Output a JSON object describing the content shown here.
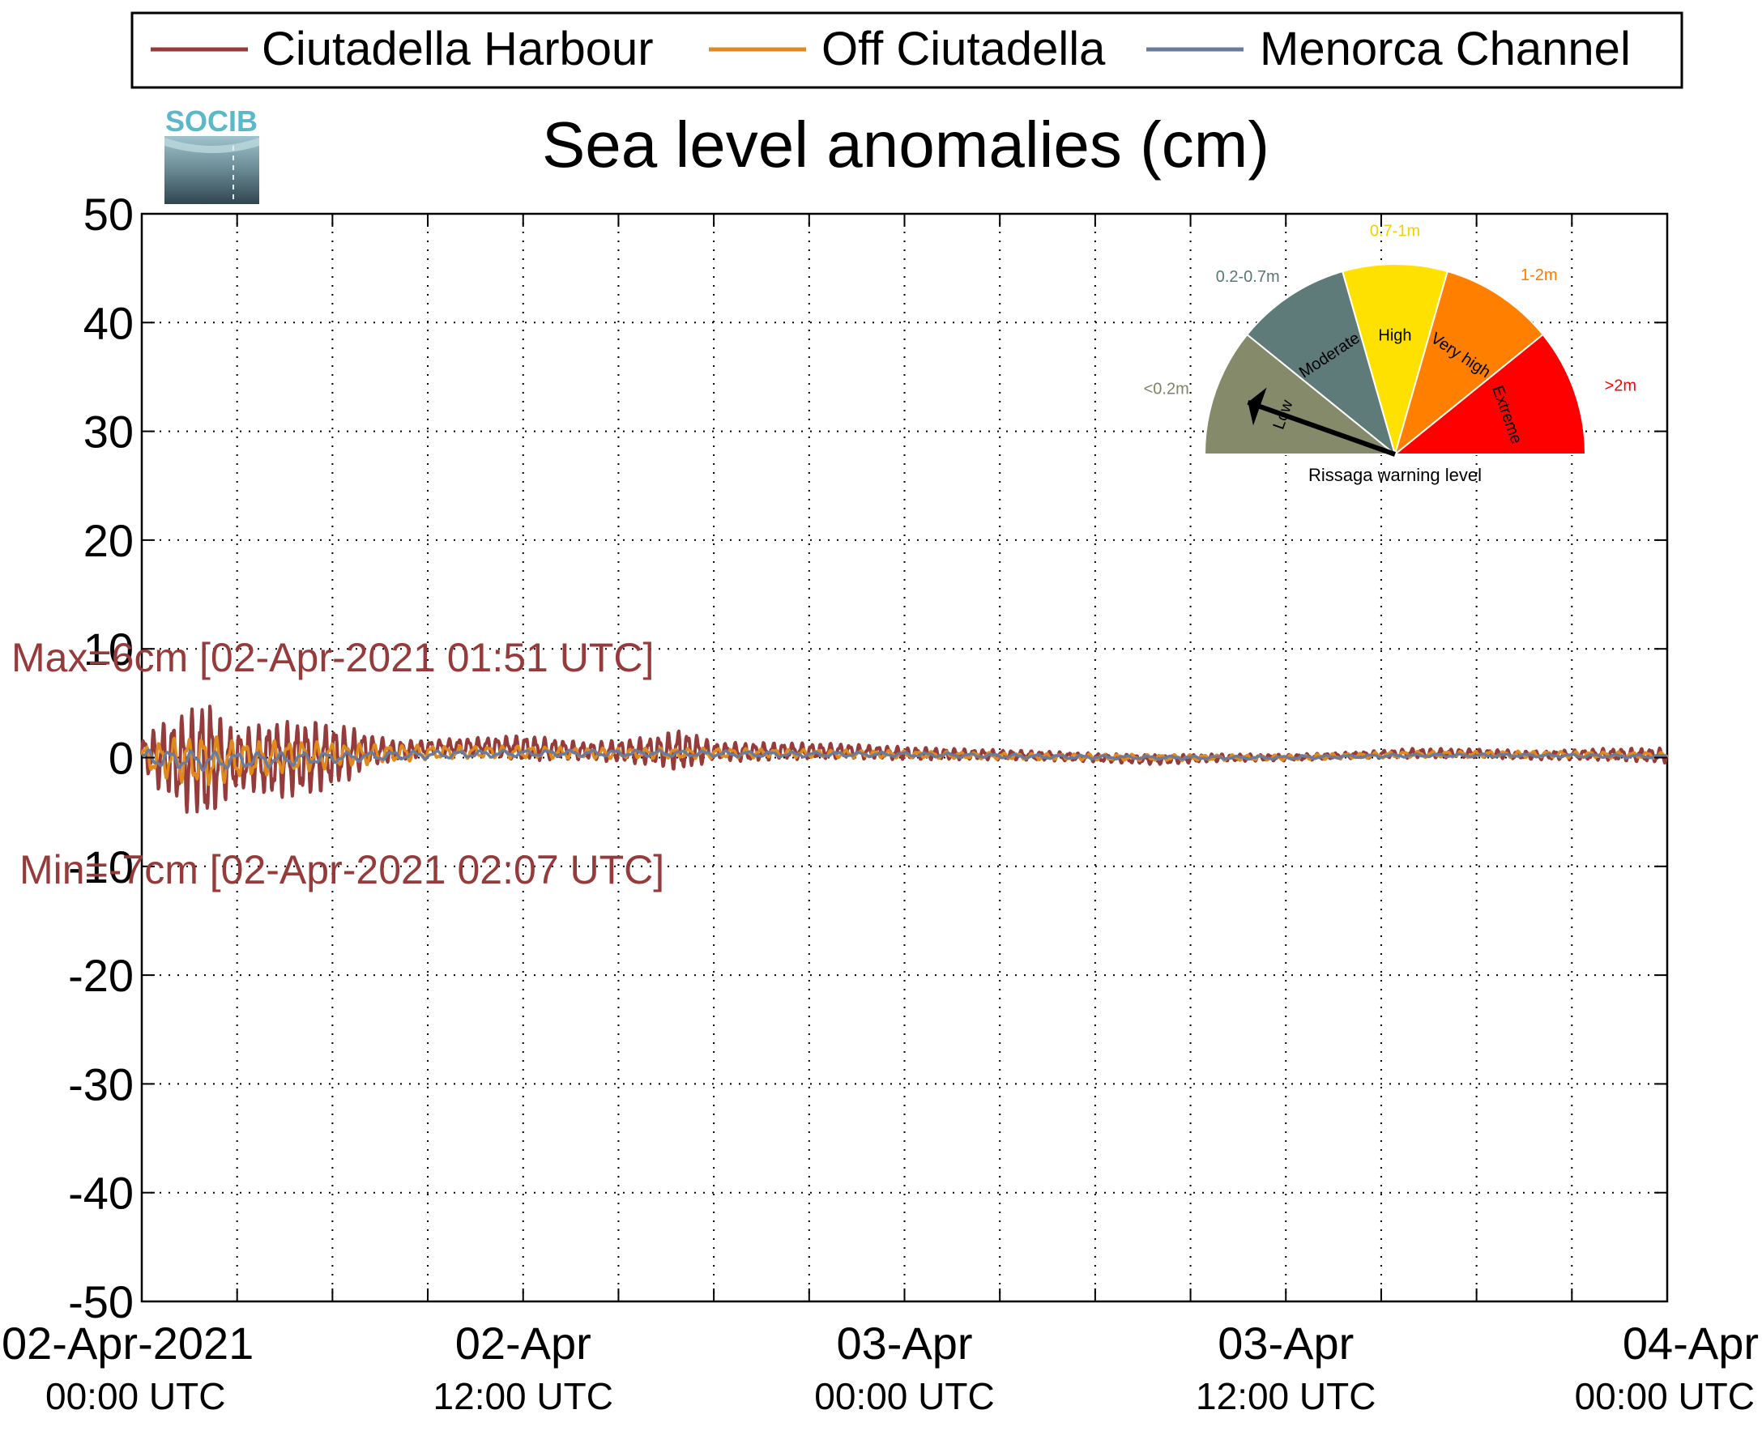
{
  "chart_data": {
    "type": "line",
    "title": "Sea level anomalies (cm)",
    "xlabel": "",
    "ylabel": "",
    "ylim": [
      -50,
      50
    ],
    "yticks": [
      50,
      40,
      30,
      20,
      10,
      0,
      -10,
      -20,
      -30,
      -40,
      -50
    ],
    "xlim_hours": [
      0,
      48
    ],
    "x_time_start": "02-Apr-2021 00:00 UTC",
    "x_time_end": "04-Apr-2021 00:00 UTC",
    "xtick_labels": [
      {
        "line1": "02-Apr-2021",
        "line2": "00:00 UTC"
      },
      {
        "line1": "02-Apr",
        "line2": "12:00 UTC"
      },
      {
        "line1": "03-Apr",
        "line2": "00:00 UTC"
      },
      {
        "line1": "03-Apr",
        "line2": "12:00 UTC"
      },
      {
        "line1": "04-Apr",
        "line2": "00:00 UTC"
      }
    ],
    "grid": true,
    "legend_position": "top",
    "series": [
      {
        "name": "Ciutadella Harbour",
        "color": "#963b3b",
        "x": [
          0,
          0.25,
          0.5,
          0.75,
          1.0,
          1.25,
          1.5,
          1.75,
          1.85,
          2.0,
          2.12,
          2.25,
          2.5,
          2.75,
          3.0,
          3.5,
          4.0,
          4.5,
          5.0,
          5.5,
          6.0,
          6.5,
          7.0,
          7.5,
          8.0,
          9.0,
          10.0,
          11.0,
          12.0,
          14.0,
          16.0,
          17.0,
          18.0,
          19.0,
          20.0,
          22.0,
          24.0,
          26.0,
          28.0,
          30.0,
          32.0,
          34.0,
          36.0,
          38.0,
          40.0,
          42.0,
          44.0,
          46.0,
          48.0
        ],
        "amplitude": [
          1.6,
          2.0,
          3.0,
          3.5,
          4.0,
          4.5,
          4.8,
          5.0,
          6.0,
          5.5,
          7.0,
          5.0,
          4.0,
          3.5,
          3.0,
          3.0,
          3.8,
          3.5,
          3.6,
          3.4,
          3.0,
          2.5,
          1.8,
          1.2,
          1.0,
          0.7,
          0.8,
          0.9,
          1.2,
          0.8,
          1.3,
          2.0,
          0.8,
          0.9,
          0.8,
          0.7,
          0.6,
          0.5,
          0.45,
          0.4,
          0.45,
          0.35,
          0.3,
          0.3,
          0.45,
          0.4,
          0.4,
          0.55,
          0.7
        ],
        "baseline": [
          0.3,
          0.2,
          0.1,
          0.0,
          -0.2,
          -0.3,
          -0.4,
          -0.3,
          -0.3,
          -0.5,
          -0.7,
          -0.4,
          -0.3,
          -0.3,
          -0.2,
          -0.1,
          -0.2,
          -0.2,
          -0.1,
          0.0,
          0.2,
          0.4,
          0.6,
          0.7,
          0.6,
          0.9,
          1.0,
          1.0,
          0.9,
          0.6,
          0.6,
          0.7,
          0.6,
          0.5,
          0.6,
          0.6,
          0.4,
          0.3,
          0.2,
          0.0,
          -0.2,
          0.0,
          0.0,
          0.2,
          0.4,
          0.4,
          0.2,
          0.3,
          0.2
        ]
      },
      {
        "name": "Off Ciutadella",
        "color": "#e08a1e",
        "x": [
          0,
          1,
          2,
          3,
          4,
          5,
          6,
          8,
          10,
          12,
          14,
          16,
          18,
          20,
          24,
          28,
          32,
          36,
          40,
          44,
          48
        ],
        "amplitude": [
          1.2,
          2.0,
          2.5,
          1.8,
          1.6,
          1.5,
          1.2,
          0.8,
          0.6,
          0.6,
          0.5,
          0.5,
          0.5,
          0.4,
          0.35,
          0.3,
          0.3,
          0.25,
          0.3,
          0.3,
          0.3
        ],
        "baseline": [
          0.0,
          -0.2,
          -0.3,
          -0.2,
          0.0,
          0.1,
          0.2,
          0.4,
          0.5,
          0.5,
          0.4,
          0.4,
          0.4,
          0.4,
          0.3,
          0.1,
          0.0,
          0.0,
          0.3,
          0.3,
          0.2
        ]
      },
      {
        "name": "Menorca Channel",
        "color": "#6b7b9c",
        "x": [
          0,
          2,
          4,
          6,
          8,
          12,
          16,
          20,
          24,
          28,
          32,
          36,
          40,
          44,
          48
        ],
        "amplitude": [
          0.8,
          0.9,
          0.7,
          0.5,
          0.4,
          0.3,
          0.3,
          0.25,
          0.2,
          0.2,
          0.15,
          0.15,
          0.15,
          0.15,
          0.15
        ],
        "baseline": [
          0.0,
          -0.3,
          -0.2,
          0.0,
          0.2,
          0.4,
          0.4,
          0.3,
          0.3,
          0.1,
          0.0,
          0.0,
          0.2,
          0.2,
          0.1
        ]
      }
    ],
    "annotations": {
      "max_text": "Max=6cm [02-Apr-2021 01:51 UTC]",
      "min_text": "Min=-7cm [02-Apr-2021 02:07 UTC]",
      "color": "#963b3b"
    },
    "gauge": {
      "title": "Rissaga warning level",
      "needle_level": "Low",
      "sectors": [
        {
          "name": "Low",
          "range": "<0.2m",
          "color": "#858b6a",
          "label_color": "#7d8464"
        },
        {
          "name": "Moderate",
          "range": "0.2-0.7m",
          "color": "#5e7b79",
          "label_color": "#5a7775"
        },
        {
          "name": "High",
          "range": "0.7-1m",
          "color": "#ffe100",
          "label_color": "#f0d000"
        },
        {
          "name": "Very high",
          "range": "1-2m",
          "color": "#ff7f00",
          "label_color": "#ff7a00"
        },
        {
          "name": "Extreme",
          "range": ">2m",
          "color": "#ff0000",
          "label_color": "#ff0000"
        }
      ]
    },
    "logo": {
      "text": "SOCIB",
      "text_color": "#5bb8c9"
    }
  }
}
